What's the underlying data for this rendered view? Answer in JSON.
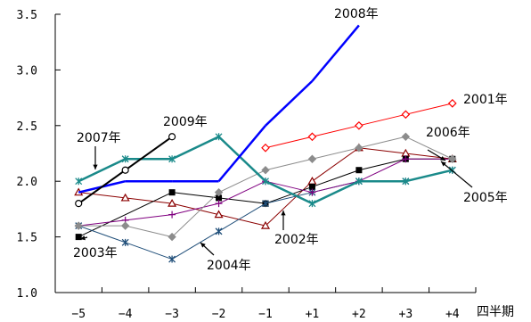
{
  "chart_data": {
    "type": "line",
    "categories": [
      "-5",
      "-4",
      "-3",
      "-2",
      "-1",
      "+1",
      "+2",
      "+3",
      "+4"
    ],
    "xlabel": "四半期",
    "ylabel": "",
    "ylim": [
      1.0,
      3.5
    ],
    "yticks": [
      "1.0",
      "1.5",
      "2.0",
      "2.5",
      "3.0",
      "3.5"
    ],
    "grid": false,
    "series": [
      {
        "name": "2001年",
        "color": "#ff0000",
        "marker": "diamond-open",
        "values": [
          null,
          null,
          null,
          null,
          2.3,
          2.4,
          2.5,
          2.6,
          2.7
        ]
      },
      {
        "name": "2002年",
        "color": "#8b0000",
        "marker": "triangle-open",
        "values": [
          1.9,
          1.85,
          1.8,
          1.7,
          1.6,
          2.0,
          2.3,
          2.25,
          2.2
        ]
      },
      {
        "name": "2003年",
        "color": "#000000",
        "marker": "square",
        "values": [
          1.5,
          null,
          1.9,
          1.85,
          1.8,
          1.95,
          2.1,
          2.2,
          2.2
        ]
      },
      {
        "name": "2004年",
        "color": "#1f4e79",
        "marker": "star",
        "values": [
          1.6,
          1.45,
          1.3,
          1.55,
          1.8,
          1.9,
          2.0,
          2.0,
          2.1
        ]
      },
      {
        "name": "2005年",
        "color": "#800080",
        "marker": "plus",
        "values": [
          1.6,
          1.65,
          1.7,
          1.8,
          2.0,
          1.9,
          2.0,
          2.2,
          2.2
        ]
      },
      {
        "name": "2006年",
        "color": "#8c8c8c",
        "marker": "diamond",
        "values": [
          1.6,
          1.6,
          1.5,
          1.9,
          2.1,
          2.2,
          2.3,
          2.4,
          2.2
        ]
      },
      {
        "name": "2007年",
        "color": "#1a8a8a",
        "marker": "asterisk",
        "values": [
          2.0,
          2.2,
          2.2,
          2.4,
          2.0,
          1.8,
          2.0,
          2.0,
          2.1
        ]
      },
      {
        "name": "2008年",
        "color": "#0000ff",
        "marker": "none",
        "values": [
          1.9,
          2.0,
          2.0,
          2.0,
          2.5,
          2.9,
          3.4,
          null,
          null
        ]
      },
      {
        "name": "2009年",
        "color": "#000000",
        "marker": "circle-open",
        "values": [
          1.8,
          2.1,
          2.4,
          null,
          null,
          null,
          null,
          null,
          null
        ]
      }
    ]
  }
}
